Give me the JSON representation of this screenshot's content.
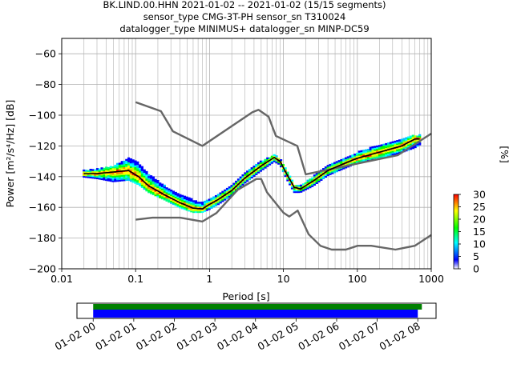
{
  "title_lines": [
    "BK.LIND.00.HHN   2021-01-02 -- 2021-01-02  (15/15 segments)",
    "sensor_type CMG-3T-PH sensor_sn T310024",
    "datalogger_type MINIMUS+ datalogger_sn MINP-DC59"
  ],
  "chart_data": [
    {
      "type": "heatmap",
      "xlabel": "Period [s]",
      "ylabel": "Power [m²/s⁴/Hz] [dB]",
      "x_scale": "log",
      "xlim": [
        0.01,
        1000
      ],
      "ylim": [
        -200,
        -50
      ],
      "x_ticks": [
        {
          "value": 0.01,
          "label": "0.01"
        },
        {
          "value": 0.1,
          "label": "0.1"
        },
        {
          "value": 1,
          "label": "1"
        },
        {
          "value": 10,
          "label": "10"
        },
        {
          "value": 100,
          "label": "100"
        },
        {
          "value": 1000,
          "label": "1000"
        }
      ],
      "y_ticks": [
        -60,
        -80,
        -100,
        -120,
        -140,
        -160,
        -180,
        -200
      ],
      "grid": true,
      "colorbar": {
        "label": "[%]",
        "range": [
          0,
          30
        ],
        "ticks": [
          "0",
          "5",
          "10",
          "15",
          "20",
          "25",
          "30"
        ],
        "colors": [
          "#ffffff",
          "#0000ff",
          "#00ffff",
          "#00ff00",
          "#ffff00",
          "#ff0000"
        ]
      },
      "series": [
        {
          "role": "noise-model-high",
          "color": "#666666",
          "x": [
            0.1,
            0.22,
            0.32,
            0.8,
            3.8,
            4.6,
            6.3,
            7.9,
            15.4,
            20,
            354,
            1000
          ],
          "y": [
            -91.5,
            -97.4,
            -110.5,
            -120,
            -98,
            -96.5,
            -101,
            -113.5,
            -120,
            -138.5,
            -126,
            -112
          ]
        },
        {
          "role": "noise-model-low",
          "color": "#666666",
          "x": [
            0.1,
            0.17,
            0.4,
            0.8,
            1.24,
            2.4,
            4.3,
            5.0,
            6.0,
            10,
            12,
            15.6,
            21.9,
            31.6,
            45,
            70,
            101,
            154,
            328,
            600,
            1000
          ],
          "y": [
            -168,
            -166.7,
            -166.7,
            -169.2,
            -163.7,
            -148.6,
            -141.5,
            -141.5,
            -150.2,
            -163.5,
            -166,
            -162.1,
            -177.5,
            -185,
            -187.5,
            -187.5,
            -185,
            -185,
            -187.5,
            -185,
            -178
          ]
        },
        {
          "role": "mode",
          "color": "#000000",
          "x": [
            0.02,
            0.03,
            0.05,
            0.08,
            0.11,
            0.15,
            0.25,
            0.4,
            0.6,
            0.8,
            1.0,
            1.3,
            2.0,
            3.0,
            5.0,
            7.5,
            9.0,
            11,
            14,
            17,
            25,
            40,
            70,
            100,
            200,
            400,
            600,
            700
          ],
          "y": [
            -138,
            -138,
            -137,
            -136,
            -140,
            -146,
            -152,
            -157,
            -160.5,
            -161,
            -158,
            -155,
            -149,
            -141,
            -133,
            -127.5,
            -130,
            -138,
            -147,
            -148,
            -143,
            -136,
            -131,
            -128,
            -124,
            -120,
            -115.5,
            -115.5
          ]
        }
      ],
      "psd_band": {
        "x": [
          0.02,
          0.03,
          0.05,
          0.08,
          0.11,
          0.15,
          0.25,
          0.4,
          0.6,
          0.8,
          1.0,
          1.3,
          2.0,
          3.0,
          5.0,
          7.5,
          9.0,
          11,
          14,
          17,
          25,
          40,
          70,
          100,
          200,
          400,
          600,
          700
        ],
        "y_low": [
          -140,
          -141,
          -143,
          -142,
          -145,
          -150,
          -155,
          -160,
          -163,
          -163,
          -161,
          -158,
          -152,
          -144,
          -136,
          -130,
          -132,
          -141,
          -150,
          -150,
          -146,
          -139,
          -134,
          -131,
          -128,
          -124,
          -121,
          -119
        ],
        "y_high": [
          -136,
          -135,
          -133,
          -128,
          -131,
          -138,
          -146,
          -152,
          -155,
          -157,
          -155,
          -152,
          -146,
          -138,
          -130,
          -126,
          -128,
          -135,
          -145,
          -146,
          -140,
          -133,
          -128,
          -124,
          -119,
          -116,
          -113,
          -113
        ]
      }
    },
    {
      "type": "timeline",
      "x_tick_labels": [
        "01-02 00",
        "01-02 01",
        "01-02 02",
        "01-02 03",
        "01-02 04",
        "01-02 05",
        "01-02 06",
        "01-02 07",
        "01-02 08"
      ],
      "xlim_hours": [
        -0.4,
        8.45
      ],
      "bars": [
        {
          "role": "data-coverage",
          "color": "#008000",
          "start_hour": 0.0,
          "end_hour": 8.1
        },
        {
          "role": "psd-segments",
          "color": "#0000ff",
          "start_hour": 0.0,
          "end_hour": 8.0
        }
      ]
    }
  ]
}
